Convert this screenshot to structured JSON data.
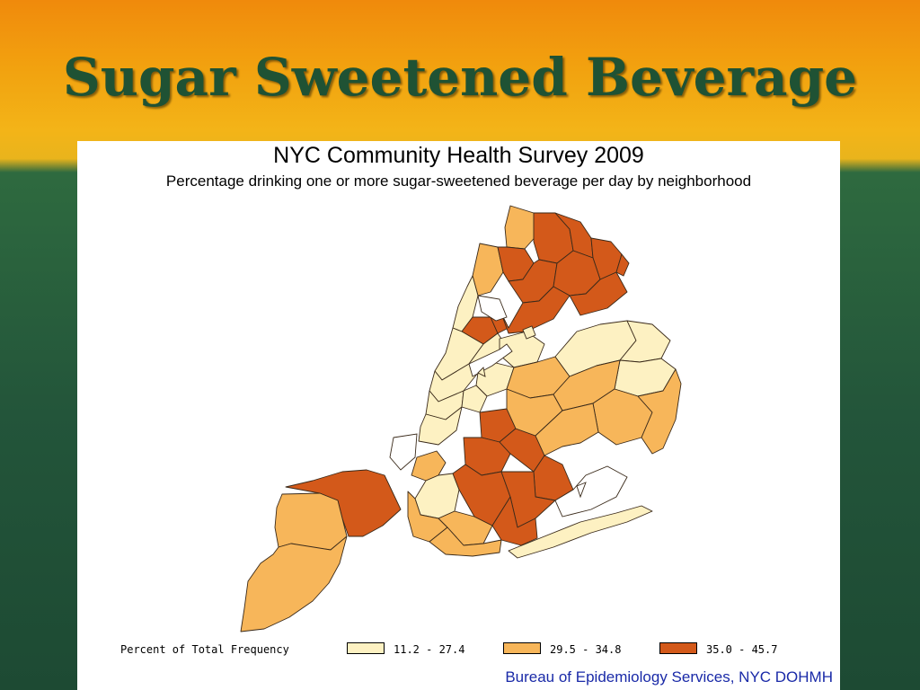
{
  "slide": {
    "title": "Sugar Sweetened Beverage"
  },
  "map": {
    "title": "NYC Community Health Survey 2009",
    "subtitle": "Percentage drinking one or more sugar-sweetened beverage per day by neighborhood",
    "legend": {
      "title": "Percent of Total Frequency",
      "classes": [
        {
          "label": "11.2 - 27.4",
          "color": "#fdf1c2"
        },
        {
          "label": "29.5 - 34.8",
          "color": "#f7b65a"
        },
        {
          "label": "35.0 - 45.7",
          "color": "#d3591a"
        }
      ]
    },
    "credit": "Bureau of Epidemiology Services, NYC DOHMH",
    "water_color": "#ffffff",
    "boundary_color": "#3a2a1a"
  }
}
